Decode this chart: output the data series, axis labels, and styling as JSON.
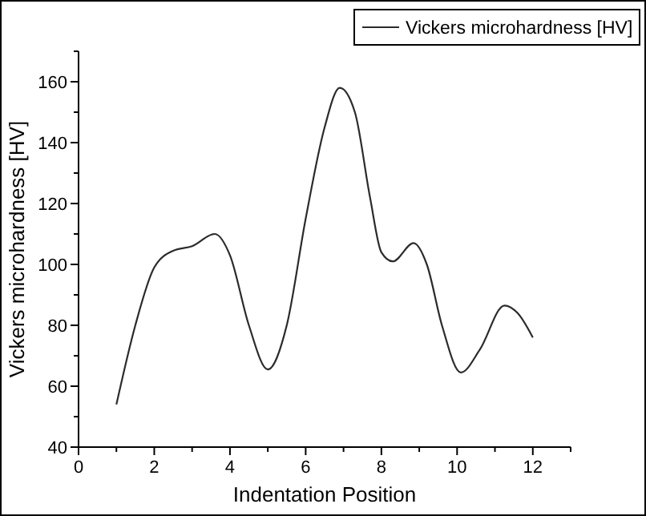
{
  "chart_data": {
    "type": "line",
    "xlabel": "Indentation Position",
    "ylabel": "Vickers microhardness [HV]",
    "xlim": [
      0,
      13
    ],
    "ylim": [
      40,
      170
    ],
    "xticks": [
      0,
      {
        "value": 1,
        "label": null
      },
      2,
      {
        "value": 3,
        "label": null
      },
      4,
      {
        "value": 5,
        "label": null
      },
      6,
      {
        "value": 7,
        "label": null
      },
      8,
      {
        "value": 9,
        "label": null
      },
      10,
      {
        "value": 11,
        "label": null
      },
      12,
      {
        "value": 13,
        "label": null
      }
    ],
    "yticks": [
      40,
      {
        "value": 50,
        "label": null
      },
      60,
      {
        "value": 70,
        "label": null
      },
      80,
      {
        "value": 90,
        "label": null
      },
      100,
      {
        "value": 110,
        "label": null
      },
      120,
      {
        "value": 130,
        "label": null
      },
      140,
      {
        "value": 150,
        "label": null
      },
      160,
      {
        "value": 170,
        "label": null
      }
    ],
    "grid": false,
    "legend": "top right",
    "marker": "none",
    "line_style": "solid",
    "series": [
      {
        "name": "Vickers microhardness [HV]",
        "color": "#2b2b2b",
        "x": [
          1,
          1.5,
          2,
          2.5,
          3,
          3.6,
          4,
          4.5,
          5,
          5.5,
          6,
          6.5,
          6.9,
          7.3,
          7.7,
          8,
          8.3,
          8.85,
          9.2,
          9.6,
          10.1,
          10.6,
          11.25,
          11.6,
          12
        ],
        "values": [
          54,
          80,
          99,
          104.5,
          106,
          110,
          103,
          80,
          65.5,
          80,
          115,
          145,
          158,
          150,
          122,
          104,
          101,
          107,
          100,
          80,
          64.5,
          72,
          86.5,
          84,
          76
        ]
      }
    ]
  }
}
